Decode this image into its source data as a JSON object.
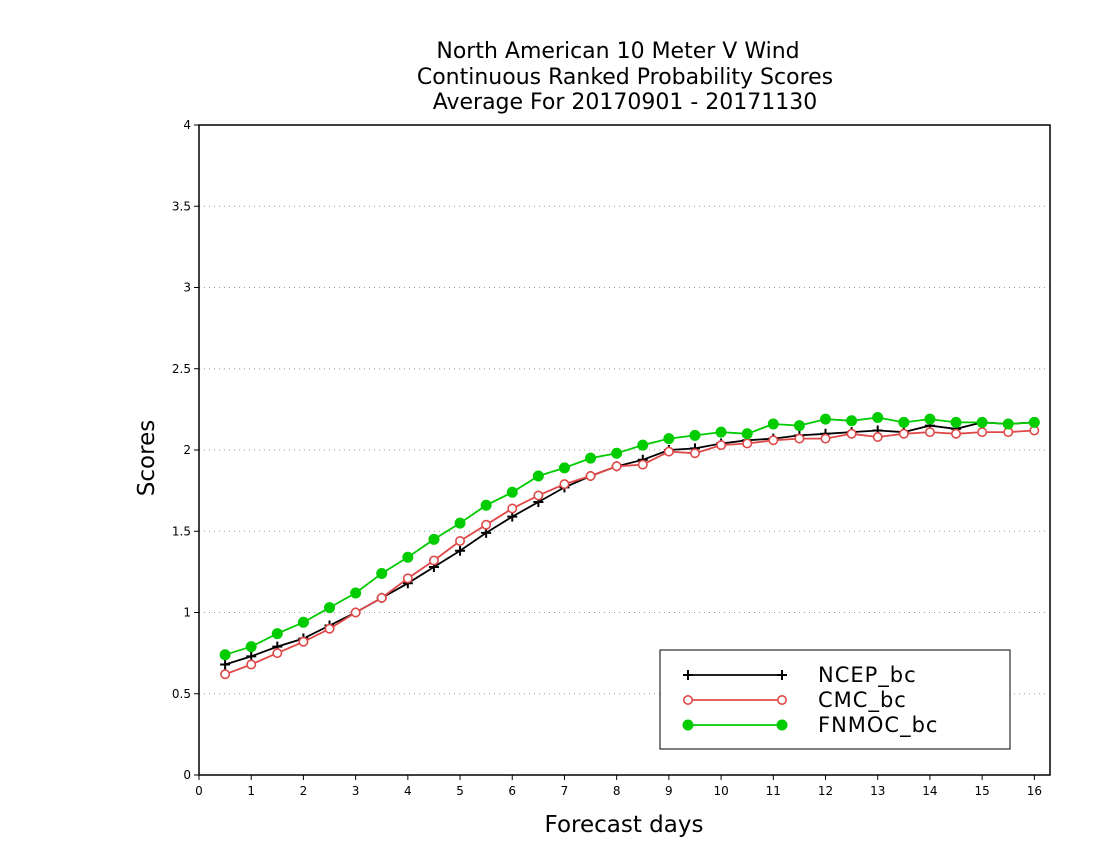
{
  "chart_data": {
    "type": "line",
    "title_lines": [
      "North American 10 Meter V Wind",
      "Continuous Ranked Probability Scores",
      "Average For 20170901 - 20171130"
    ],
    "xlabel": "Forecast days",
    "ylabel": "Scores",
    "xlim": [
      0,
      16.3
    ],
    "ylim": [
      0,
      4
    ],
    "x_ticks": [
      0,
      1,
      2,
      3,
      4,
      5,
      6,
      7,
      8,
      9,
      10,
      11,
      12,
      13,
      14,
      15,
      16
    ],
    "y_ticks": [
      0,
      0.5,
      1,
      1.5,
      2,
      2.5,
      3,
      3.5,
      4
    ],
    "y_tick_labels": [
      "0",
      "0.5",
      "1",
      "1.5",
      "2",
      "2.5",
      "3",
      "3.5",
      "4"
    ],
    "grid": "horizontal dotted",
    "legend_position": "bottom-right",
    "x": [
      0.5,
      1,
      1.5,
      2,
      2.5,
      3,
      3.5,
      4,
      4.5,
      5,
      5.5,
      6,
      6.5,
      7,
      7.5,
      8,
      8.5,
      9,
      9.5,
      10,
      10.5,
      11,
      11.5,
      12,
      12.5,
      13,
      13.5,
      14,
      14.5,
      15,
      15.5,
      16
    ],
    "series": [
      {
        "name": "NCEP_bc",
        "color": "#000000",
        "marker": "plus",
        "values": [
          0.68,
          0.73,
          0.79,
          0.84,
          0.92,
          1.0,
          1.09,
          1.18,
          1.28,
          1.38,
          1.49,
          1.59,
          1.68,
          1.77,
          1.84,
          1.9,
          1.94,
          2.0,
          2.01,
          2.04,
          2.06,
          2.07,
          2.09,
          2.1,
          2.11,
          2.12,
          2.11,
          2.15,
          2.13,
          2.17,
          2.16,
          2.17
        ]
      },
      {
        "name": "CMC_bc",
        "color": "#e04848",
        "marker": "open-circle",
        "values": [
          0.62,
          0.68,
          0.75,
          0.82,
          0.9,
          1.0,
          1.09,
          1.21,
          1.32,
          1.44,
          1.54,
          1.64,
          1.72,
          1.79,
          1.84,
          1.9,
          1.91,
          1.99,
          1.98,
          2.03,
          2.04,
          2.06,
          2.07,
          2.07,
          2.1,
          2.08,
          2.1,
          2.11,
          2.1,
          2.11,
          2.11,
          2.12
        ]
      },
      {
        "name": "FNMOC_bc",
        "color": "#00cc00",
        "marker": "filled-circle",
        "values": [
          0.74,
          0.79,
          0.87,
          0.94,
          1.03,
          1.12,
          1.24,
          1.34,
          1.45,
          1.55,
          1.66,
          1.74,
          1.84,
          1.89,
          1.95,
          1.98,
          2.03,
          2.07,
          2.09,
          2.11,
          2.1,
          2.16,
          2.15,
          2.19,
          2.18,
          2.2,
          2.17,
          2.19,
          2.17,
          2.17,
          2.16,
          2.17
        ]
      }
    ]
  }
}
